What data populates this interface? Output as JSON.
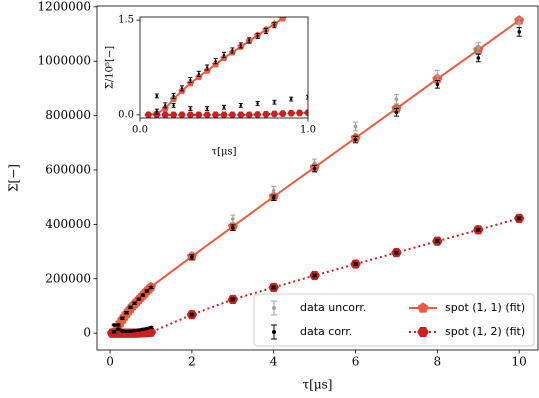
{
  "chart_data": [
    {
      "type": "line",
      "xlabel": "τ[μs]",
      "ylabel": "Σ[−]",
      "xlim": [
        -0.32,
        10.46
      ],
      "ylim": [
        -62000,
        1203000
      ],
      "xticks": [
        0,
        2,
        4,
        6,
        8,
        10
      ],
      "yticks": [
        0,
        200000,
        400000,
        600000,
        800000,
        1000000,
        1200000
      ],
      "legend": "lower right",
      "series": [
        {
          "name": "data uncorr.",
          "kind": "errorbar",
          "color": "#a0a0a0",
          "x": [
            2,
            3,
            4,
            5,
            6,
            7,
            8,
            9,
            10
          ],
          "values": [
            285000,
            420000,
            525000,
            625000,
            760000,
            860000,
            948000,
            1050000,
            1140000
          ],
          "errors": [
            12000,
            14000,
            14000,
            15000,
            16000,
            17000,
            18000,
            18000,
            18000
          ]
        },
        {
          "name": "data corr.",
          "kind": "errorbar",
          "color": "#000000",
          "x": [
            0.1,
            0.2,
            0.3,
            0.4,
            0.5,
            0.6,
            0.7,
            0.8,
            0.9,
            1.0,
            2,
            3,
            4,
            5,
            6,
            7,
            8,
            9,
            10,
            0.1,
            0.2,
            0.3,
            0.4,
            0.5,
            0.6,
            0.7,
            0.8,
            0.9,
            1.0,
            2,
            3,
            4,
            5,
            6,
            7,
            8,
            9,
            10
          ],
          "values": [
            5000,
            30000,
            55000,
            75000,
            95000,
            110000,
            125000,
            140000,
            155000,
            168000,
            280000,
            388000,
            498000,
            605000,
            712000,
            812000,
            915000,
            1012000,
            1108000,
            30000,
            15000,
            8000,
            6000,
            7000,
            9000,
            11000,
            14000,
            17000,
            21000,
            68000,
            124000,
            168000,
            212000,
            254000,
            296000,
            338000,
            380000,
            422000
          ],
          "errors": [
            4000,
            4000,
            4000,
            4000,
            4000,
            4000,
            4000,
            4000,
            4000,
            4000,
            8000,
            10000,
            10000,
            12000,
            12000,
            14000,
            14000,
            14000,
            16000,
            3000,
            3000,
            3000,
            3000,
            3000,
            3000,
            3000,
            3000,
            3000,
            3000,
            5000,
            5000,
            5000,
            5000,
            5000,
            5000,
            5000,
            5000,
            5000
          ]
        },
        {
          "name": "spot (1, 1) (fit)",
          "kind": "line",
          "marker": "pentagon",
          "dash": false,
          "color": "#ee5a3f",
          "x": [
            0.05,
            0.1,
            0.15,
            0.2,
            0.25,
            0.3,
            0.35,
            0.4,
            0.45,
            0.5,
            0.55,
            0.6,
            0.65,
            0.7,
            0.75,
            0.8,
            0.85,
            0.9,
            0.95,
            1.0,
            2,
            3,
            4,
            5,
            6,
            7,
            8,
            9,
            10
          ],
          "values": [
            0,
            2000,
            10000,
            25000,
            38000,
            50000,
            61000,
            71000,
            81000,
            90000,
            99000,
            107000,
            115000,
            123000,
            131000,
            139000,
            147000,
            155000,
            162000,
            170000,
            282000,
            392000,
            502000,
            610000,
            718000,
            826000,
            935000,
            1042000,
            1150000
          ]
        },
        {
          "name": "spot (1, 2) (fit)",
          "kind": "line",
          "marker": "hexagon",
          "dash": true,
          "color": "#cc1f1f",
          "x": [
            0.05,
            0.1,
            0.15,
            0.2,
            0.25,
            0.3,
            0.35,
            0.4,
            0.45,
            0.5,
            0.55,
            0.6,
            0.65,
            0.7,
            0.75,
            0.8,
            0.85,
            0.9,
            0.95,
            1.0,
            2,
            3,
            4,
            5,
            6,
            7,
            8,
            9,
            10
          ],
          "values": [
            0,
            0,
            0,
            0,
            0,
            0,
            0,
            0,
            0,
            0,
            0,
            0,
            0,
            500,
            1000,
            1500,
            2000,
            2500,
            3000,
            3500,
            68000,
            124000,
            168000,
            212000,
            254000,
            296000,
            338000,
            380000,
            422000
          ]
        }
      ]
    },
    {
      "type": "line",
      "xlabel": "τ[μs]",
      "ylabel": "Σ/10⁵[−]",
      "xlim": [
        0,
        1
      ],
      "ylim": [
        -0.05,
        1.55
      ],
      "xticks": [
        {
          "value": 0,
          "label": "0.0"
        },
        {
          "value": 1,
          "label": "1.0"
        }
      ],
      "yticks": [
        {
          "value": 0,
          "label": "0.0"
        },
        1.5
      ],
      "series": [
        {
          "kind": "errorbar",
          "color": "#000000",
          "x": [
            0.1,
            0.15,
            0.2,
            0.25,
            0.3,
            0.35,
            0.4,
            0.45,
            0.5,
            0.55,
            0.6,
            0.65,
            0.7,
            0.75,
            0.8,
            0.1,
            0.2,
            0.3,
            0.4,
            0.5,
            0.6,
            0.7,
            0.8,
            0.9,
            1.0
          ],
          "values": [
            0.05,
            0.15,
            0.3,
            0.42,
            0.55,
            0.65,
            0.75,
            0.85,
            0.95,
            1.02,
            1.1,
            1.18,
            1.25,
            1.33,
            1.42,
            0.3,
            0.15,
            0.1,
            0.1,
            0.12,
            0.15,
            0.18,
            0.2,
            0.25,
            0.28
          ],
          "errors": [
            0.04,
            0.04,
            0.04,
            0.04,
            0.04,
            0.04,
            0.04,
            0.04,
            0.04,
            0.04,
            0.04,
            0.04,
            0.04,
            0.04,
            0.04,
            0.03,
            0.03,
            0.03,
            0.03,
            0.03,
            0.03,
            0.03,
            0.03,
            0.03,
            0.03
          ]
        },
        {
          "kind": "line",
          "marker": "pentagon",
          "dash": false,
          "color": "#ee5a3f",
          "x": [
            0.05,
            0.1,
            0.15,
            0.2,
            0.25,
            0.3,
            0.35,
            0.4,
            0.45,
            0.5,
            0.55,
            0.6,
            0.65,
            0.7,
            0.75,
            0.8,
            0.85
          ],
          "values": [
            0,
            0.02,
            0.1,
            0.25,
            0.38,
            0.5,
            0.6,
            0.7,
            0.8,
            0.9,
            0.99,
            1.08,
            1.17,
            1.26,
            1.35,
            1.44,
            1.53
          ]
        },
        {
          "kind": "line",
          "marker": "hexagon",
          "dash": true,
          "color": "#cc1f1f",
          "x": [
            0.05,
            0.1,
            0.15,
            0.2,
            0.25,
            0.3,
            0.35,
            0.4,
            0.45,
            0.5,
            0.55,
            0.6,
            0.65,
            0.7,
            0.75,
            0.8,
            0.85,
            0.9,
            0.95,
            1.0
          ],
          "values": [
            0,
            0,
            0,
            0,
            0,
            0,
            0,
            0,
            0,
            0,
            0,
            0,
            0,
            0.005,
            0.01,
            0.015,
            0.02,
            0.025,
            0.03,
            0.035
          ]
        }
      ]
    }
  ]
}
